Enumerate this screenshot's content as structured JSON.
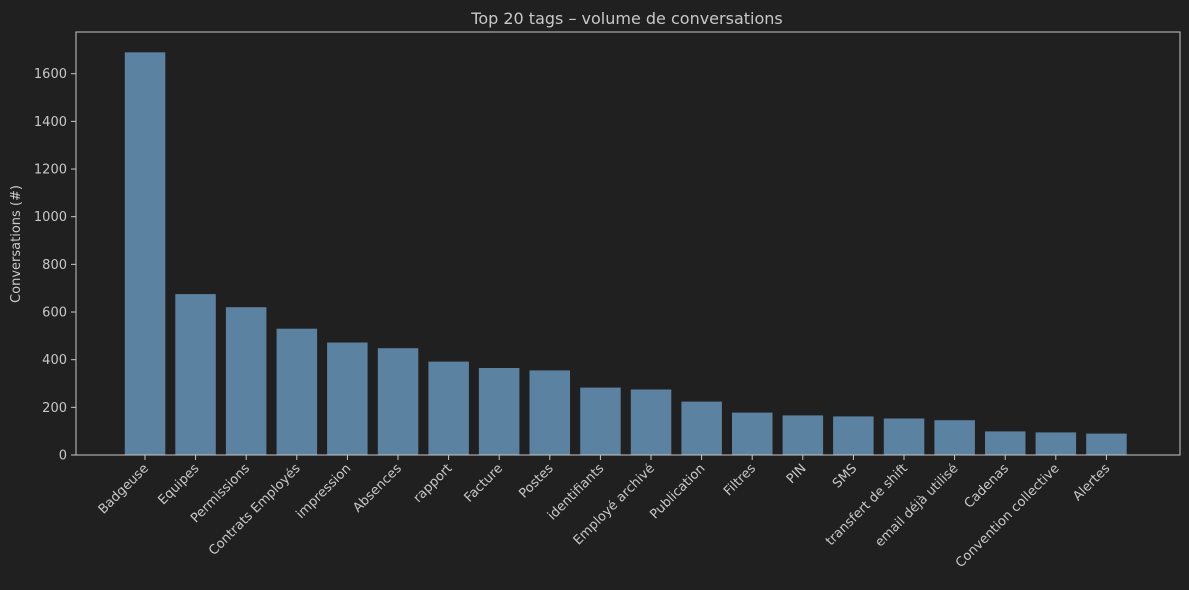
{
  "chart_data": {
    "type": "bar",
    "title": "Top 20 tags – volume de conversations",
    "xlabel": "",
    "ylabel": "Conversations (#)",
    "categories": [
      "Badgeuse",
      "Equipes",
      "Permissions",
      "Contrats Employés",
      "impression",
      "Absences",
      "rapport",
      "Facture",
      "Postes",
      "identifiants",
      "Employé archivé",
      "Publication",
      "Filtres",
      "PIN",
      "SMS",
      "transfert de shift",
      "email déjà utilisé",
      "Cadenas",
      "Convention collective",
      "Alertes"
    ],
    "values": [
      1690,
      675,
      620,
      530,
      472,
      448,
      392,
      365,
      355,
      283,
      275,
      224,
      178,
      166,
      162,
      153,
      146,
      99,
      95,
      90
    ],
    "yticks": [
      0,
      200,
      400,
      600,
      800,
      1000,
      1200,
      1400,
      1600
    ],
    "ylim": [
      0,
      1775
    ],
    "grid": false,
    "legend": "none",
    "colors": {
      "background": "#202020",
      "bar": "#5b82a0",
      "axis": "#c8c8c8",
      "text": "#c8c8c8"
    }
  }
}
